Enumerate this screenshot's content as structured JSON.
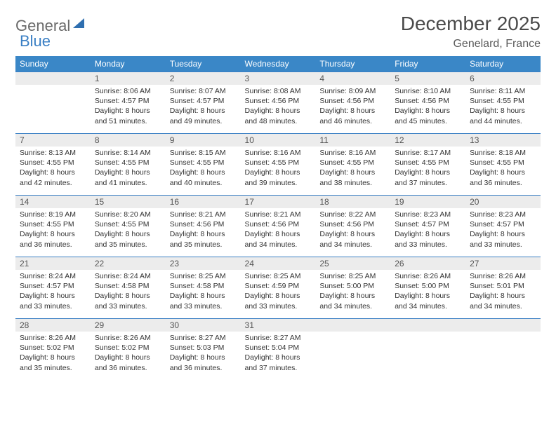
{
  "logo": {
    "part1": "General",
    "part2": "Blue"
  },
  "title": "December 2025",
  "location": "Genelard, France",
  "colors": {
    "header_bg": "#3a87c7",
    "header_text": "#ffffff",
    "daynum_bg": "#ececec",
    "border": "#3a7fc4",
    "logo_gray": "#6b6b6b",
    "logo_blue": "#3a7fc4"
  },
  "weekdays": [
    "Sunday",
    "Monday",
    "Tuesday",
    "Wednesday",
    "Thursday",
    "Friday",
    "Saturday"
  ],
  "weeks": [
    [
      {
        "n": "",
        "sr": "",
        "ss": "",
        "dl": ""
      },
      {
        "n": "1",
        "sr": "Sunrise: 8:06 AM",
        "ss": "Sunset: 4:57 PM",
        "dl": "Daylight: 8 hours and 51 minutes."
      },
      {
        "n": "2",
        "sr": "Sunrise: 8:07 AM",
        "ss": "Sunset: 4:57 PM",
        "dl": "Daylight: 8 hours and 49 minutes."
      },
      {
        "n": "3",
        "sr": "Sunrise: 8:08 AM",
        "ss": "Sunset: 4:56 PM",
        "dl": "Daylight: 8 hours and 48 minutes."
      },
      {
        "n": "4",
        "sr": "Sunrise: 8:09 AM",
        "ss": "Sunset: 4:56 PM",
        "dl": "Daylight: 8 hours and 46 minutes."
      },
      {
        "n": "5",
        "sr": "Sunrise: 8:10 AM",
        "ss": "Sunset: 4:56 PM",
        "dl": "Daylight: 8 hours and 45 minutes."
      },
      {
        "n": "6",
        "sr": "Sunrise: 8:11 AM",
        "ss": "Sunset: 4:55 PM",
        "dl": "Daylight: 8 hours and 44 minutes."
      }
    ],
    [
      {
        "n": "7",
        "sr": "Sunrise: 8:13 AM",
        "ss": "Sunset: 4:55 PM",
        "dl": "Daylight: 8 hours and 42 minutes."
      },
      {
        "n": "8",
        "sr": "Sunrise: 8:14 AM",
        "ss": "Sunset: 4:55 PM",
        "dl": "Daylight: 8 hours and 41 minutes."
      },
      {
        "n": "9",
        "sr": "Sunrise: 8:15 AM",
        "ss": "Sunset: 4:55 PM",
        "dl": "Daylight: 8 hours and 40 minutes."
      },
      {
        "n": "10",
        "sr": "Sunrise: 8:16 AM",
        "ss": "Sunset: 4:55 PM",
        "dl": "Daylight: 8 hours and 39 minutes."
      },
      {
        "n": "11",
        "sr": "Sunrise: 8:16 AM",
        "ss": "Sunset: 4:55 PM",
        "dl": "Daylight: 8 hours and 38 minutes."
      },
      {
        "n": "12",
        "sr": "Sunrise: 8:17 AM",
        "ss": "Sunset: 4:55 PM",
        "dl": "Daylight: 8 hours and 37 minutes."
      },
      {
        "n": "13",
        "sr": "Sunrise: 8:18 AM",
        "ss": "Sunset: 4:55 PM",
        "dl": "Daylight: 8 hours and 36 minutes."
      }
    ],
    [
      {
        "n": "14",
        "sr": "Sunrise: 8:19 AM",
        "ss": "Sunset: 4:55 PM",
        "dl": "Daylight: 8 hours and 36 minutes."
      },
      {
        "n": "15",
        "sr": "Sunrise: 8:20 AM",
        "ss": "Sunset: 4:55 PM",
        "dl": "Daylight: 8 hours and 35 minutes."
      },
      {
        "n": "16",
        "sr": "Sunrise: 8:21 AM",
        "ss": "Sunset: 4:56 PM",
        "dl": "Daylight: 8 hours and 35 minutes."
      },
      {
        "n": "17",
        "sr": "Sunrise: 8:21 AM",
        "ss": "Sunset: 4:56 PM",
        "dl": "Daylight: 8 hours and 34 minutes."
      },
      {
        "n": "18",
        "sr": "Sunrise: 8:22 AM",
        "ss": "Sunset: 4:56 PM",
        "dl": "Daylight: 8 hours and 34 minutes."
      },
      {
        "n": "19",
        "sr": "Sunrise: 8:23 AM",
        "ss": "Sunset: 4:57 PM",
        "dl": "Daylight: 8 hours and 33 minutes."
      },
      {
        "n": "20",
        "sr": "Sunrise: 8:23 AM",
        "ss": "Sunset: 4:57 PM",
        "dl": "Daylight: 8 hours and 33 minutes."
      }
    ],
    [
      {
        "n": "21",
        "sr": "Sunrise: 8:24 AM",
        "ss": "Sunset: 4:57 PM",
        "dl": "Daylight: 8 hours and 33 minutes."
      },
      {
        "n": "22",
        "sr": "Sunrise: 8:24 AM",
        "ss": "Sunset: 4:58 PM",
        "dl": "Daylight: 8 hours and 33 minutes."
      },
      {
        "n": "23",
        "sr": "Sunrise: 8:25 AM",
        "ss": "Sunset: 4:58 PM",
        "dl": "Daylight: 8 hours and 33 minutes."
      },
      {
        "n": "24",
        "sr": "Sunrise: 8:25 AM",
        "ss": "Sunset: 4:59 PM",
        "dl": "Daylight: 8 hours and 33 minutes."
      },
      {
        "n": "25",
        "sr": "Sunrise: 8:25 AM",
        "ss": "Sunset: 5:00 PM",
        "dl": "Daylight: 8 hours and 34 minutes."
      },
      {
        "n": "26",
        "sr": "Sunrise: 8:26 AM",
        "ss": "Sunset: 5:00 PM",
        "dl": "Daylight: 8 hours and 34 minutes."
      },
      {
        "n": "27",
        "sr": "Sunrise: 8:26 AM",
        "ss": "Sunset: 5:01 PM",
        "dl": "Daylight: 8 hours and 34 minutes."
      }
    ],
    [
      {
        "n": "28",
        "sr": "Sunrise: 8:26 AM",
        "ss": "Sunset: 5:02 PM",
        "dl": "Daylight: 8 hours and 35 minutes."
      },
      {
        "n": "29",
        "sr": "Sunrise: 8:26 AM",
        "ss": "Sunset: 5:02 PM",
        "dl": "Daylight: 8 hours and 36 minutes."
      },
      {
        "n": "30",
        "sr": "Sunrise: 8:27 AM",
        "ss": "Sunset: 5:03 PM",
        "dl": "Daylight: 8 hours and 36 minutes."
      },
      {
        "n": "31",
        "sr": "Sunrise: 8:27 AM",
        "ss": "Sunset: 5:04 PM",
        "dl": "Daylight: 8 hours and 37 minutes."
      },
      {
        "n": "",
        "sr": "",
        "ss": "",
        "dl": ""
      },
      {
        "n": "",
        "sr": "",
        "ss": "",
        "dl": ""
      },
      {
        "n": "",
        "sr": "",
        "ss": "",
        "dl": ""
      }
    ]
  ]
}
